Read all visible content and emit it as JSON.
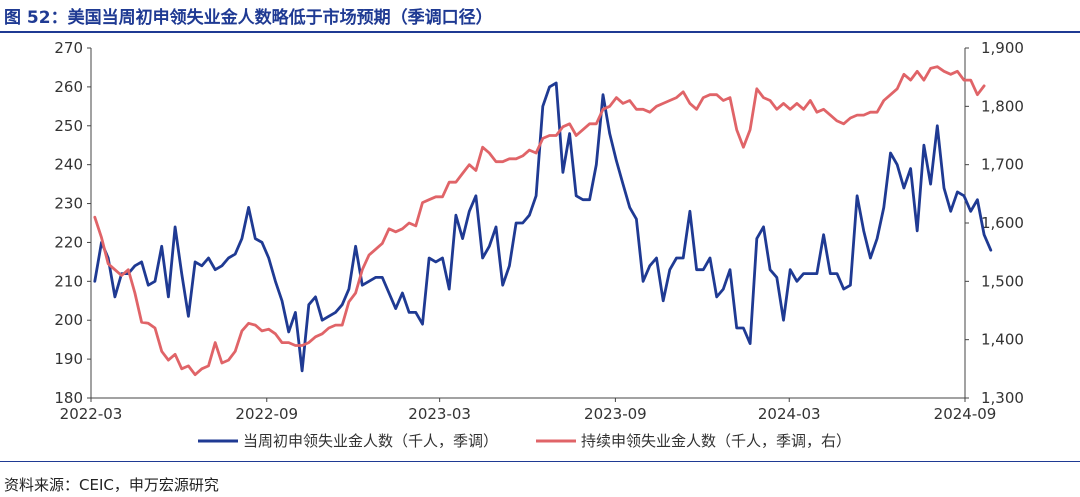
{
  "title": "图 52：美国当周初申领失业金人数略低于市场预期（季调口径）",
  "source": "资料来源：CEIC，申万宏源研究",
  "chart_data": {
    "type": "line",
    "x_ticks": [
      "2022-03",
      "2022-09",
      "2023-03",
      "2023-09",
      "2024-03",
      "2024-09"
    ],
    "x_range": [
      "2022-03",
      "2024-09"
    ],
    "left_axis": {
      "ylim": [
        180,
        270
      ],
      "ticks": [
        "180",
        "190",
        "200",
        "210",
        "220",
        "230",
        "240",
        "250",
        "260",
        "270"
      ]
    },
    "right_axis": {
      "ylim": [
        1300,
        1900
      ],
      "ticks": [
        "1,300",
        "1,400",
        "1,500",
        "1,600",
        "1,700",
        "1,800",
        "1,900"
      ]
    },
    "grid": false,
    "legend_position": "bottom",
    "series": [
      {
        "name": "当周初申领失业金人数（千人，季调）",
        "axis": "left",
        "color": "#1f3a93",
        "points": [
          [
            "2022-03-05",
            210
          ],
          [
            "2022-03-12",
            220
          ],
          [
            "2022-03-19",
            216
          ],
          [
            "2022-03-26",
            206
          ],
          [
            "2022-04-02",
            212
          ],
          [
            "2022-04-09",
            212
          ],
          [
            "2022-04-16",
            214
          ],
          [
            "2022-04-23",
            215
          ],
          [
            "2022-04-30",
            209
          ],
          [
            "2022-05-07",
            210
          ],
          [
            "2022-05-14",
            219
          ],
          [
            "2022-05-21",
            206
          ],
          [
            "2022-05-28",
            224
          ],
          [
            "2022-06-04",
            212
          ],
          [
            "2022-06-11",
            201
          ],
          [
            "2022-06-18",
            215
          ],
          [
            "2022-06-25",
            214
          ],
          [
            "2022-07-02",
            216
          ],
          [
            "2022-07-09",
            213
          ],
          [
            "2022-07-16",
            214
          ],
          [
            "2022-07-23",
            216
          ],
          [
            "2022-07-30",
            217
          ],
          [
            "2022-08-06",
            221
          ],
          [
            "2022-08-13",
            229
          ],
          [
            "2022-08-20",
            221
          ],
          [
            "2022-08-27",
            220
          ],
          [
            "2022-09-03",
            216
          ],
          [
            "2022-09-10",
            210
          ],
          [
            "2022-09-17",
            205
          ],
          [
            "2022-09-24",
            197
          ],
          [
            "2022-10-01",
            202
          ],
          [
            "2022-10-08",
            187
          ],
          [
            "2022-10-15",
            204
          ],
          [
            "2022-10-22",
            206
          ],
          [
            "2022-10-29",
            200
          ],
          [
            "2022-11-05",
            201
          ],
          [
            "2022-11-12",
            202
          ],
          [
            "2022-11-19",
            204
          ],
          [
            "2022-11-26",
            208
          ],
          [
            "2022-12-03",
            219
          ],
          [
            "2022-12-10",
            209
          ],
          [
            "2022-12-17",
            210
          ],
          [
            "2022-12-24",
            211
          ],
          [
            "2022-12-31",
            211
          ],
          [
            "2023-01-07",
            207
          ],
          [
            "2023-01-14",
            203
          ],
          [
            "2023-01-21",
            207
          ],
          [
            "2023-01-28",
            202
          ],
          [
            "2023-02-04",
            202
          ],
          [
            "2023-02-11",
            199
          ],
          [
            "2023-02-18",
            216
          ],
          [
            "2023-02-25",
            215
          ],
          [
            "2023-03-04",
            216
          ],
          [
            "2023-03-11",
            208
          ],
          [
            "2023-03-18",
            227
          ],
          [
            "2023-03-25",
            221
          ],
          [
            "2023-04-01",
            228
          ],
          [
            "2023-04-08",
            232
          ],
          [
            "2023-04-15",
            216
          ],
          [
            "2023-04-22",
            219
          ],
          [
            "2023-04-29",
            224
          ],
          [
            "2023-05-06",
            209
          ],
          [
            "2023-05-13",
            214
          ],
          [
            "2023-05-20",
            225
          ],
          [
            "2023-05-27",
            225
          ],
          [
            "2023-06-03",
            227
          ],
          [
            "2023-06-10",
            232
          ],
          [
            "2023-06-17",
            255
          ],
          [
            "2023-06-24",
            260
          ],
          [
            "2023-07-01",
            261
          ],
          [
            "2023-07-08",
            238
          ],
          [
            "2023-07-15",
            248
          ],
          [
            "2023-07-22",
            232
          ],
          [
            "2023-07-29",
            231
          ],
          [
            "2023-08-05",
            231
          ],
          [
            "2023-08-12",
            240
          ],
          [
            "2023-08-19",
            258
          ],
          [
            "2023-08-26",
            248
          ],
          [
            "2023-09-02",
            241
          ],
          [
            "2023-09-09",
            235
          ],
          [
            "2023-09-16",
            229
          ],
          [
            "2023-09-23",
            226
          ],
          [
            "2023-09-30",
            210
          ],
          [
            "2023-10-07",
            214
          ],
          [
            "2023-10-14",
            216
          ],
          [
            "2023-10-21",
            205
          ],
          [
            "2023-10-28",
            213
          ],
          [
            "2023-11-04",
            216
          ],
          [
            "2023-11-11",
            216
          ],
          [
            "2023-11-18",
            228
          ],
          [
            "2023-11-25",
            213
          ],
          [
            "2023-12-02",
            213
          ],
          [
            "2023-12-09",
            216
          ],
          [
            "2023-12-16",
            206
          ],
          [
            "2023-12-23",
            208
          ],
          [
            "2023-12-30",
            213
          ],
          [
            "2024-01-06",
            198
          ],
          [
            "2024-01-13",
            198
          ],
          [
            "2024-01-20",
            194
          ],
          [
            "2024-01-27",
            221
          ],
          [
            "2024-02-03",
            224
          ],
          [
            "2024-02-10",
            213
          ],
          [
            "2024-02-17",
            211
          ],
          [
            "2024-02-24",
            200
          ],
          [
            "2024-03-02",
            213
          ],
          [
            "2024-03-09",
            210
          ],
          [
            "2024-03-16",
            212
          ],
          [
            "2024-03-23",
            212
          ],
          [
            "2024-03-30",
            212
          ],
          [
            "2024-04-06",
            222
          ],
          [
            "2024-04-13",
            212
          ],
          [
            "2024-04-20",
            212
          ],
          [
            "2024-04-27",
            208
          ],
          [
            "2024-05-04",
            209
          ],
          [
            "2024-05-11",
            232
          ],
          [
            "2024-05-18",
            223
          ],
          [
            "2024-05-25",
            216
          ],
          [
            "2024-06-01",
            221
          ],
          [
            "2024-06-08",
            229
          ],
          [
            "2024-06-15",
            243
          ],
          [
            "2024-06-22",
            240
          ],
          [
            "2024-06-29",
            234
          ],
          [
            "2024-07-06",
            239
          ],
          [
            "2024-07-13",
            223
          ],
          [
            "2024-07-20",
            245
          ],
          [
            "2024-07-27",
            235
          ],
          [
            "2024-08-03",
            250
          ],
          [
            "2024-08-10",
            234
          ],
          [
            "2024-08-17",
            228
          ],
          [
            "2024-08-24",
            233
          ],
          [
            "2024-08-31",
            232
          ],
          [
            "2024-09-07",
            228
          ],
          [
            "2024-09-14",
            231
          ],
          [
            "2024-09-21",
            222
          ],
          [
            "2024-09-28",
            218
          ]
        ]
      },
      {
        "name": "持续申领失业金人数（千人，季调，右）",
        "axis": "right",
        "color": "#e06468",
        "points": [
          [
            "2022-03-05",
            1610
          ],
          [
            "2022-03-12",
            1575
          ],
          [
            "2022-03-19",
            1530
          ],
          [
            "2022-03-26",
            1520
          ],
          [
            "2022-04-02",
            1510
          ],
          [
            "2022-04-09",
            1520
          ],
          [
            "2022-04-16",
            1480
          ],
          [
            "2022-04-23",
            1430
          ],
          [
            "2022-04-30",
            1428
          ],
          [
            "2022-05-07",
            1420
          ],
          [
            "2022-05-14",
            1380
          ],
          [
            "2022-05-21",
            1365
          ],
          [
            "2022-05-28",
            1375
          ],
          [
            "2022-06-04",
            1350
          ],
          [
            "2022-06-11",
            1355
          ],
          [
            "2022-06-18",
            1340
          ],
          [
            "2022-06-25",
            1350
          ],
          [
            "2022-07-02",
            1355
          ],
          [
            "2022-07-09",
            1395
          ],
          [
            "2022-07-16",
            1360
          ],
          [
            "2022-07-23",
            1365
          ],
          [
            "2022-07-30",
            1380
          ],
          [
            "2022-08-06",
            1415
          ],
          [
            "2022-08-13",
            1428
          ],
          [
            "2022-08-20",
            1425
          ],
          [
            "2022-08-27",
            1415
          ],
          [
            "2022-09-03",
            1418
          ],
          [
            "2022-09-10",
            1410
          ],
          [
            "2022-09-17",
            1395
          ],
          [
            "2022-09-24",
            1395
          ],
          [
            "2022-10-01",
            1390
          ],
          [
            "2022-10-08",
            1390
          ],
          [
            "2022-10-15",
            1395
          ],
          [
            "2022-10-22",
            1405
          ],
          [
            "2022-10-29",
            1410
          ],
          [
            "2022-11-05",
            1420
          ],
          [
            "2022-11-12",
            1425
          ],
          [
            "2022-11-19",
            1425
          ],
          [
            "2022-11-26",
            1465
          ],
          [
            "2022-12-03",
            1480
          ],
          [
            "2022-12-10",
            1520
          ],
          [
            "2022-12-17",
            1545
          ],
          [
            "2022-12-24",
            1555
          ],
          [
            "2022-12-31",
            1565
          ],
          [
            "2023-01-07",
            1590
          ],
          [
            "2023-01-14",
            1585
          ],
          [
            "2023-01-21",
            1590
          ],
          [
            "2023-01-28",
            1600
          ],
          [
            "2023-02-04",
            1595
          ],
          [
            "2023-02-11",
            1635
          ],
          [
            "2023-02-18",
            1640
          ],
          [
            "2023-02-25",
            1645
          ],
          [
            "2023-03-04",
            1645
          ],
          [
            "2023-03-11",
            1670
          ],
          [
            "2023-03-18",
            1670
          ],
          [
            "2023-03-25",
            1685
          ],
          [
            "2023-04-01",
            1700
          ],
          [
            "2023-04-08",
            1690
          ],
          [
            "2023-04-15",
            1730
          ],
          [
            "2023-04-22",
            1720
          ],
          [
            "2023-04-29",
            1705
          ],
          [
            "2023-05-06",
            1705
          ],
          [
            "2023-05-13",
            1710
          ],
          [
            "2023-05-20",
            1710
          ],
          [
            "2023-05-27",
            1715
          ],
          [
            "2023-06-03",
            1725
          ],
          [
            "2023-06-10",
            1720
          ],
          [
            "2023-06-17",
            1745
          ],
          [
            "2023-06-24",
            1750
          ],
          [
            "2023-07-01",
            1750
          ],
          [
            "2023-07-08",
            1765
          ],
          [
            "2023-07-15",
            1770
          ],
          [
            "2023-07-22",
            1750
          ],
          [
            "2023-07-29",
            1760
          ],
          [
            "2023-08-05",
            1770
          ],
          [
            "2023-08-12",
            1770
          ],
          [
            "2023-08-19",
            1795
          ],
          [
            "2023-08-26",
            1800
          ],
          [
            "2023-09-02",
            1815
          ],
          [
            "2023-09-09",
            1805
          ],
          [
            "2023-09-16",
            1810
          ],
          [
            "2023-09-23",
            1795
          ],
          [
            "2023-09-30",
            1795
          ],
          [
            "2023-10-07",
            1790
          ],
          [
            "2023-10-14",
            1800
          ],
          [
            "2023-10-21",
            1805
          ],
          [
            "2023-10-28",
            1810
          ],
          [
            "2023-11-04",
            1815
          ],
          [
            "2023-11-11",
            1825
          ],
          [
            "2023-11-18",
            1805
          ],
          [
            "2023-11-25",
            1795
          ],
          [
            "2023-12-02",
            1815
          ],
          [
            "2023-12-09",
            1820
          ],
          [
            "2023-12-16",
            1820
          ],
          [
            "2023-12-23",
            1810
          ],
          [
            "2023-12-30",
            1815
          ],
          [
            "2024-01-06",
            1760
          ],
          [
            "2024-01-13",
            1730
          ],
          [
            "2024-01-20",
            1760
          ],
          [
            "2024-01-27",
            1830
          ],
          [
            "2024-02-03",
            1815
          ],
          [
            "2024-02-10",
            1810
          ],
          [
            "2024-02-17",
            1795
          ],
          [
            "2024-02-24",
            1805
          ],
          [
            "2024-03-02",
            1795
          ],
          [
            "2024-03-09",
            1805
          ],
          [
            "2024-03-16",
            1795
          ],
          [
            "2024-03-23",
            1810
          ],
          [
            "2024-03-30",
            1790
          ],
          [
            "2024-04-06",
            1795
          ],
          [
            "2024-04-13",
            1785
          ],
          [
            "2024-04-20",
            1775
          ],
          [
            "2024-04-27",
            1770
          ],
          [
            "2024-05-04",
            1780
          ],
          [
            "2024-05-11",
            1785
          ],
          [
            "2024-05-18",
            1785
          ],
          [
            "2024-05-25",
            1790
          ],
          [
            "2024-06-01",
            1790
          ],
          [
            "2024-06-08",
            1810
          ],
          [
            "2024-06-15",
            1820
          ],
          [
            "2024-06-22",
            1830
          ],
          [
            "2024-06-29",
            1855
          ],
          [
            "2024-07-06",
            1845
          ],
          [
            "2024-07-13",
            1860
          ],
          [
            "2024-07-20",
            1845
          ],
          [
            "2024-07-27",
            1865
          ],
          [
            "2024-08-03",
            1868
          ],
          [
            "2024-08-10",
            1860
          ],
          [
            "2024-08-17",
            1855
          ],
          [
            "2024-08-24",
            1860
          ],
          [
            "2024-08-31",
            1845
          ],
          [
            "2024-09-07",
            1845
          ],
          [
            "2024-09-14",
            1820
          ],
          [
            "2024-09-21",
            1835
          ]
        ]
      }
    ]
  }
}
